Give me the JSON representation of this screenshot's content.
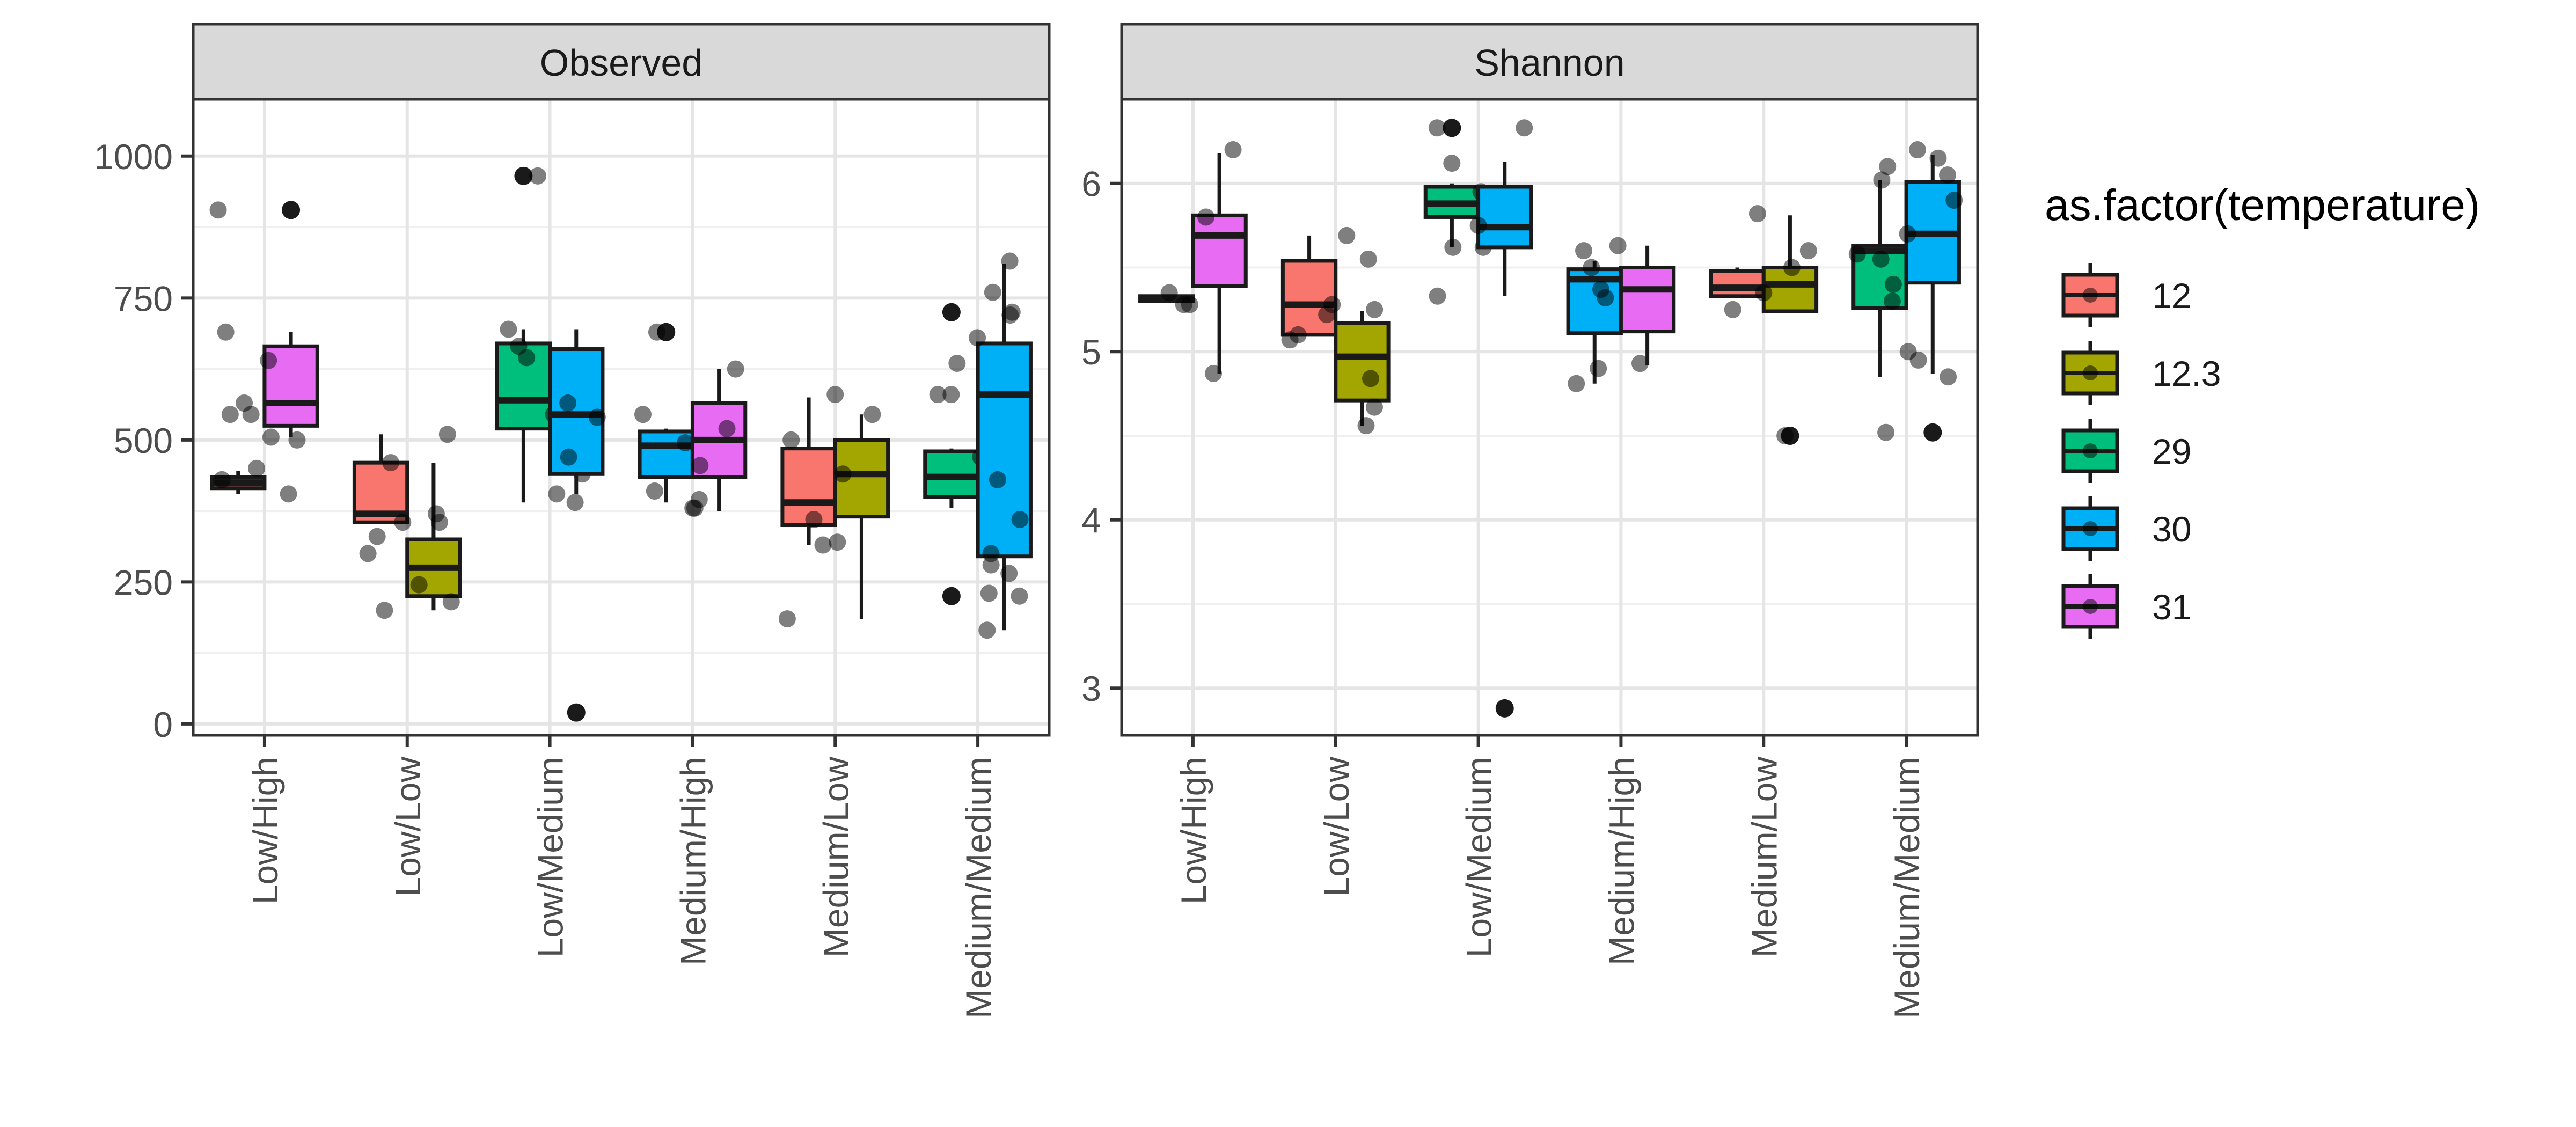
{
  "chart_data": {
    "type": "box",
    "legend": {
      "title": "as.factor(temperature)",
      "position": "right",
      "entries": [
        {
          "label": "12",
          "color": "#F8766D"
        },
        {
          "label": "12.3",
          "color": "#A3A500"
        },
        {
          "label": "29",
          "color": "#00BF7D"
        },
        {
          "label": "30",
          "color": "#00B0F6"
        },
        {
          "label": "31",
          "color": "#E76BF3"
        }
      ]
    },
    "categories": [
      "Low/High",
      "Low/Low",
      "Low/Medium",
      "Medium/High",
      "Medium/Low",
      "Medium/Medium"
    ],
    "grid": true,
    "panels": [
      {
        "title": "Observed",
        "ylim": [
          -20,
          1100
        ],
        "yticks": [
          0,
          250,
          500,
          750,
          1000
        ],
        "boxes": [
          {
            "category": "Low/High",
            "group": "12",
            "slot": 0,
            "stats": [
              405,
              415,
              425,
              435,
              445
            ],
            "outliers": [],
            "points": [
              405,
              430,
              450,
              500,
              545
            ]
          },
          {
            "category": "Low/High",
            "group": "31",
            "slot": 1,
            "stats": [
              505,
              525,
              565,
              665,
              690
            ],
            "outliers": [
              905
            ],
            "points": [
              505,
              545,
              565,
              640,
              690,
              905
            ]
          },
          {
            "category": "Low/Low",
            "group": "12",
            "slot": 0,
            "stats": [
              355,
              355,
              370,
              460,
              510
            ],
            "outliers": [],
            "points": [
              355,
              460,
              510
            ]
          },
          {
            "category": "Low/Low",
            "group": "12.3",
            "slot": 1,
            "stats": [
              200,
              225,
              275,
              325,
              460
            ],
            "outliers": [],
            "points": [
              200,
              215,
              245,
              300,
              330,
              355,
              370
            ]
          },
          {
            "category": "Low/Medium",
            "group": "29",
            "slot": 0,
            "stats": [
              390,
              520,
              570,
              670,
              695
            ],
            "outliers": [
              965
            ],
            "points": [
              440,
              545,
              570,
              645,
              665,
              695,
              965
            ]
          },
          {
            "category": "Low/Medium",
            "group": "30",
            "slot": 1,
            "stats": [
              405,
              440,
              545,
              660,
              695
            ],
            "outliers": [
              20
            ],
            "points": [
              390,
              405,
              470,
              540,
              565
            ]
          },
          {
            "category": "Medium/High",
            "group": "30",
            "slot": 0,
            "stats": [
              390,
              435,
              490,
              515,
              520
            ],
            "outliers": [
              690
            ],
            "points": [
              380,
              395,
              410,
              495,
              625,
              690
            ]
          },
          {
            "category": "Medium/High",
            "group": "31",
            "slot": 1,
            "stats": [
              375,
              435,
              500,
              565,
              625
            ],
            "outliers": [],
            "points": [
              380,
              455,
              520,
              545
            ]
          },
          {
            "category": "Medium/Low",
            "group": "12",
            "slot": 0,
            "stats": [
              315,
              350,
              390,
              485,
              575
            ],
            "outliers": [],
            "points": [
              320,
              390,
              500,
              580
            ]
          },
          {
            "category": "Medium/Low",
            "group": "12.3",
            "slot": 1,
            "stats": [
              185,
              365,
              440,
              500,
              545
            ],
            "outliers": [],
            "points": [
              185,
              315,
              360,
              440,
              545
            ]
          },
          {
            "category": "Medium/Medium",
            "group": "29",
            "slot": 0,
            "stats": [
              380,
              400,
              435,
              480,
              485
            ],
            "outliers": [
              725,
              225
            ],
            "points": [
              165,
              225,
              425,
              440,
              470,
              490,
              520,
              580,
              635,
              725
            ]
          },
          {
            "category": "Medium/Medium",
            "group": "30",
            "slot": 1,
            "stats": [
              165,
              295,
              580,
              670,
              810
            ],
            "outliers": [],
            "points": [
              230,
              265,
              280,
              300,
              360,
              430,
              580,
              680,
              720,
              760,
              815
            ]
          }
        ]
      },
      {
        "title": "Shannon",
        "ylim": [
          2.72,
          6.5
        ],
        "yticks": [
          3,
          4,
          5,
          6
        ],
        "boxes": [
          {
            "category": "Low/High",
            "group": "12",
            "slot": 0,
            "stats": [
              5.3,
              5.3,
              5.32,
              5.33,
              5.33
            ],
            "outliers": [],
            "points": [
              4.87,
              5.28,
              5.35,
              5.52,
              5.7
            ]
          },
          {
            "category": "Low/High",
            "group": "31",
            "slot": 1,
            "stats": [
              4.87,
              5.39,
              5.69,
              5.81,
              6.18
            ],
            "outliers": [],
            "points": [
              5.28,
              5.8,
              6.2
            ]
          },
          {
            "category": "Low/Low",
            "group": "12",
            "slot": 0,
            "stats": [
              5.1,
              5.1,
              5.28,
              5.54,
              5.69
            ],
            "outliers": [],
            "points": [
              5.1,
              5.25,
              5.55
            ]
          },
          {
            "category": "Low/Low",
            "group": "12.3",
            "slot": 1,
            "stats": [
              4.56,
              4.71,
              4.97,
              5.17,
              5.24
            ],
            "outliers": [],
            "points": [
              4.56,
              4.67,
              4.84,
              5.07,
              5.22,
              5.28,
              5.69
            ]
          },
          {
            "category": "Low/Medium",
            "group": "29",
            "slot": 0,
            "stats": [
              5.62,
              5.8,
              5.88,
              5.98,
              6.0
            ],
            "outliers": [
              6.33
            ],
            "points": [
              5.33,
              5.62,
              5.85,
              5.95,
              6.33
            ]
          },
          {
            "category": "Low/Medium",
            "group": "30",
            "slot": 1,
            "stats": [
              5.33,
              5.62,
              5.74,
              5.98,
              6.13
            ],
            "outliers": [
              2.88
            ],
            "points": [
              5.62,
              5.75,
              6.12,
              6.33
            ]
          },
          {
            "category": "Medium/High",
            "group": "30",
            "slot": 0,
            "stats": [
              4.81,
              5.11,
              5.43,
              5.49,
              5.54
            ],
            "outliers": [],
            "points": [
              4.81,
              4.9,
              4.93,
              5.32,
              5.6
            ]
          },
          {
            "category": "Medium/High",
            "group": "31",
            "slot": 1,
            "stats": [
              4.92,
              5.12,
              5.37,
              5.5,
              5.63
            ],
            "outliers": [],
            "points": [
              5.37,
              5.5,
              5.63
            ]
          },
          {
            "category": "Medium/Low",
            "group": "12",
            "slot": 0,
            "stats": [
              5.33,
              5.33,
              5.38,
              5.48,
              5.5
            ],
            "outliers": [],
            "points": [
              5.25,
              5.37,
              5.6
            ]
          },
          {
            "category": "Medium/Low",
            "group": "12.3",
            "slot": 1,
            "stats": [
              5.24,
              5.24,
              5.4,
              5.5,
              5.81
            ],
            "outliers": [
              4.5
            ],
            "points": [
              4.5,
              5.35,
              5.5,
              5.82
            ]
          },
          {
            "category": "Medium/Medium",
            "group": "29",
            "slot": 0,
            "stats": [
              4.85,
              5.26,
              5.6,
              5.63,
              6.02
            ],
            "outliers": [],
            "points": [
              4.52,
              4.85,
              4.95,
              5.3,
              5.58,
              5.62,
              6.02,
              6.15
            ]
          },
          {
            "category": "Medium/Medium",
            "group": "30",
            "slot": 1,
            "stats": [
              4.87,
              5.41,
              5.7,
              6.01,
              6.17
            ],
            "outliers": [
              4.52
            ],
            "points": [
              5.0,
              5.4,
              5.55,
              5.7,
              5.9,
              6.05,
              6.1,
              6.2
            ]
          }
        ]
      }
    ]
  }
}
